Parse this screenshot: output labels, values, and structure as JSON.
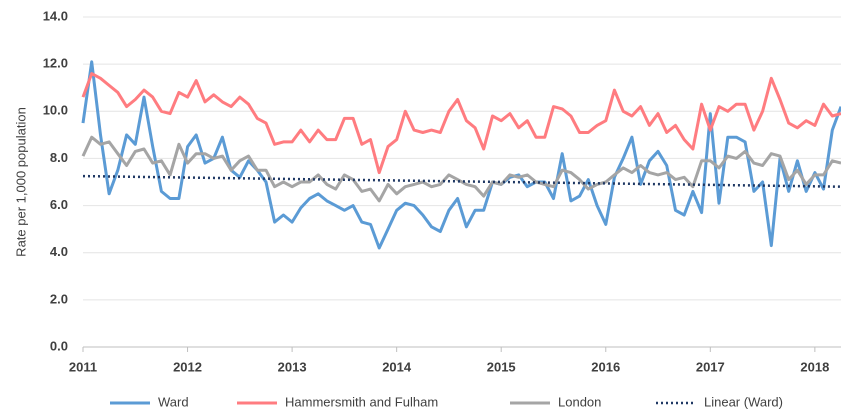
{
  "chart_data": {
    "type": "line",
    "y_label": "Rate per 1,000 population",
    "x": [
      2011,
      2011.083,
      2011.167,
      2011.25,
      2011.333,
      2011.417,
      2011.5,
      2011.583,
      2011.667,
      2011.75,
      2011.833,
      2011.917,
      2012,
      2012.083,
      2012.167,
      2012.25,
      2012.333,
      2012.417,
      2012.5,
      2012.583,
      2012.667,
      2012.75,
      2012.833,
      2012.917,
      2013,
      2013.083,
      2013.167,
      2013.25,
      2013.333,
      2013.417,
      2013.5,
      2013.583,
      2013.667,
      2013.75,
      2013.833,
      2013.917,
      2014,
      2014.083,
      2014.167,
      2014.25,
      2014.333,
      2014.417,
      2014.5,
      2014.583,
      2014.667,
      2014.75,
      2014.833,
      2014.917,
      2015,
      2015.083,
      2015.167,
      2015.25,
      2015.333,
      2015.417,
      2015.5,
      2015.583,
      2015.667,
      2015.75,
      2015.833,
      2015.917,
      2016,
      2016.083,
      2016.167,
      2016.25,
      2016.333,
      2016.417,
      2016.5,
      2016.583,
      2016.667,
      2016.75,
      2016.833,
      2016.917,
      2017,
      2017.083,
      2017.167,
      2017.25,
      2017.333,
      2017.417,
      2017.5,
      2017.583,
      2017.667,
      2017.75,
      2017.833,
      2017.917,
      2018,
      2018.083,
      2018.167,
      2018.25
    ],
    "series": [
      {
        "name": "Ward",
        "color": "#5b9bd5",
        "values": [
          9.5,
          12.1,
          9.0,
          6.5,
          7.5,
          9.0,
          8.6,
          10.6,
          8.5,
          6.6,
          6.3,
          6.3,
          8.5,
          9.0,
          7.8,
          8.0,
          8.9,
          7.5,
          7.2,
          7.9,
          7.5,
          7.0,
          5.3,
          5.6,
          5.3,
          5.9,
          6.3,
          6.5,
          6.2,
          6.0,
          5.8,
          6.0,
          5.3,
          5.2,
          4.2,
          5.0,
          5.8,
          6.1,
          6.0,
          5.6,
          5.1,
          4.9,
          5.8,
          6.3,
          5.1,
          5.8,
          5.8,
          7.0,
          6.9,
          7.2,
          7.3,
          6.8,
          7.0,
          7.0,
          6.3,
          8.2,
          6.2,
          6.4,
          7.1,
          6.0,
          5.2,
          7.2,
          8.0,
          8.9,
          6.9,
          7.9,
          8.3,
          7.7,
          5.8,
          5.6,
          6.6,
          5.7,
          9.9,
          6.1,
          8.9,
          8.9,
          8.7,
          6.6,
          7.0,
          4.3,
          8.0,
          6.6,
          7.9,
          6.6,
          7.4,
          6.7,
          9.2,
          10.2
        ]
      },
      {
        "name": "Hammersmith and Fulham",
        "color": "#ff7c80",
        "values": [
          10.6,
          11.6,
          11.4,
          11.1,
          10.8,
          10.2,
          10.5,
          10.9,
          10.6,
          10.0,
          9.9,
          10.8,
          10.6,
          11.3,
          10.4,
          10.7,
          10.4,
          10.2,
          10.6,
          10.3,
          9.7,
          9.5,
          8.6,
          8.7,
          8.7,
          9.2,
          8.7,
          9.2,
          8.8,
          8.8,
          9.7,
          9.7,
          8.6,
          8.8,
          7.4,
          8.5,
          8.8,
          10.0,
          9.2,
          9.1,
          9.2,
          9.1,
          10.0,
          10.5,
          9.6,
          9.3,
          8.4,
          9.8,
          9.6,
          9.9,
          9.3,
          9.6,
          8.9,
          8.9,
          10.2,
          10.1,
          9.8,
          9.1,
          9.1,
          9.4,
          9.6,
          10.9,
          10.0,
          9.8,
          10.2,
          9.4,
          9.9,
          9.1,
          9.4,
          8.8,
          8.4,
          10.3,
          9.2,
          10.2,
          10.0,
          10.3,
          10.3,
          9.2,
          10.0,
          11.4,
          10.5,
          9.5,
          9.3,
          9.6,
          9.4,
          10.3,
          9.8,
          9.9
        ]
      },
      {
        "name": "London",
        "color": "#a5a5a5",
        "values": [
          8.1,
          8.9,
          8.6,
          8.7,
          8.2,
          7.7,
          8.3,
          8.4,
          7.8,
          7.9,
          7.3,
          8.6,
          7.8,
          8.2,
          8.2,
          8.0,
          8.1,
          7.5,
          7.9,
          8.1,
          7.5,
          7.5,
          6.8,
          7.0,
          6.8,
          7.0,
          7.0,
          7.3,
          6.9,
          6.7,
          7.3,
          7.1,
          6.6,
          6.7,
          6.2,
          6.9,
          6.5,
          6.8,
          6.9,
          7.0,
          6.8,
          6.9,
          7.3,
          7.1,
          6.9,
          6.8,
          6.4,
          7.0,
          6.9,
          7.3,
          7.2,
          7.3,
          7.0,
          6.9,
          6.8,
          7.5,
          7.4,
          7.1,
          6.7,
          6.9,
          7.0,
          7.3,
          7.6,
          7.4,
          7.7,
          7.4,
          7.3,
          7.4,
          7.1,
          7.2,
          6.8,
          7.9,
          7.9,
          7.6,
          8.1,
          8.0,
          8.3,
          7.8,
          7.7,
          8.2,
          8.1,
          7.1,
          7.5,
          6.9,
          7.3,
          7.3,
          7.9,
          7.8
        ]
      }
    ],
    "trendline": {
      "name": "Linear (Ward)",
      "color": "#1f3864",
      "dash": "dotted",
      "x": [
        2011,
        2018.25
      ],
      "values": [
        7.25,
        6.8
      ]
    },
    "xlim": [
      2011,
      2018.25
    ],
    "xticks": [
      2011,
      2012,
      2013,
      2014,
      2015,
      2016,
      2017,
      2018
    ],
    "ylim": [
      0,
      14
    ],
    "yticks": [
      {
        "value": 0,
        "label": "0.0"
      },
      {
        "value": 2,
        "label": "2.0"
      },
      {
        "value": 4,
        "label": "4.0"
      },
      {
        "value": 6,
        "label": "6.0"
      },
      {
        "value": 8,
        "label": "8.0"
      },
      {
        "value": 10,
        "label": "10.0"
      },
      {
        "value": 12,
        "label": "12.0"
      },
      {
        "value": 14,
        "label": "14.0"
      }
    ],
    "grid": true,
    "legend": "bottom"
  }
}
